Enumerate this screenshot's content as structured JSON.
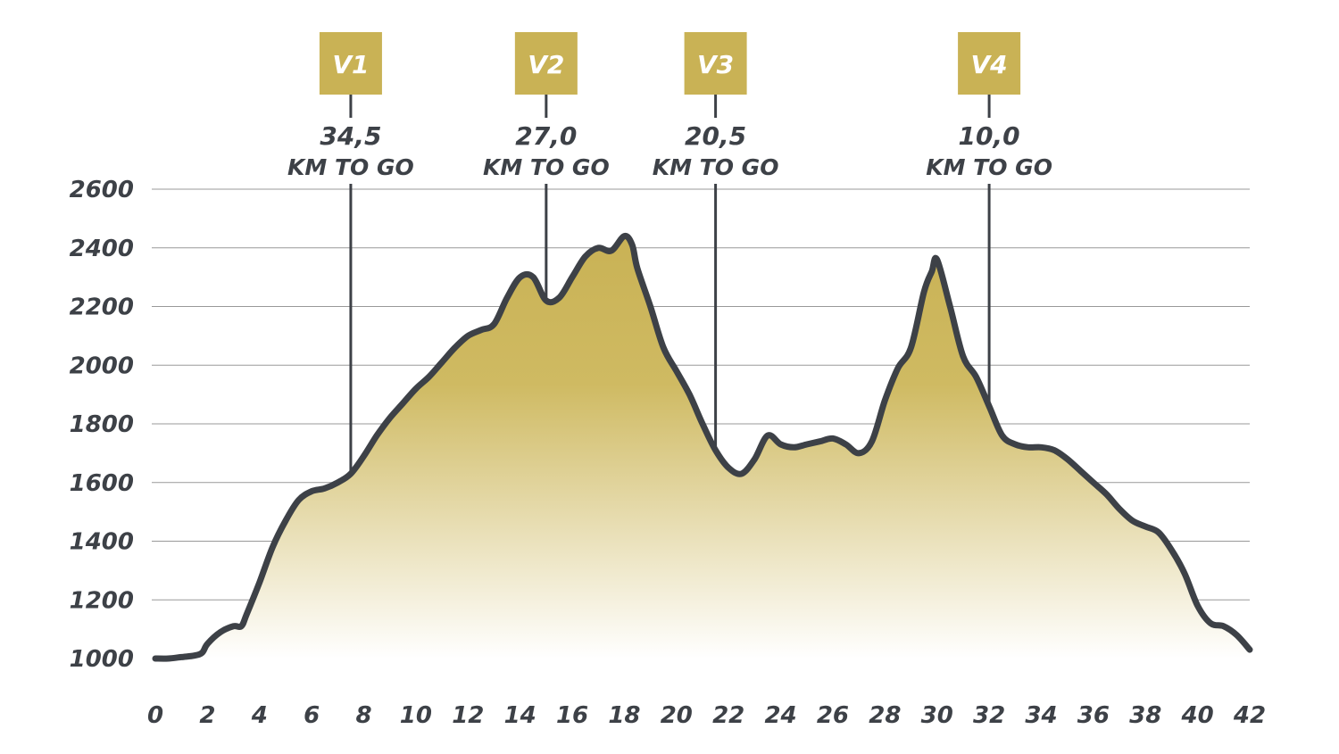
{
  "colors": {
    "line": "#3d4147",
    "fill_top": "#c9b255",
    "fill_bottom": "#ffffff",
    "badge": "#c9b255",
    "grid": "#999999"
  },
  "chart_data": {
    "type": "area",
    "title": "",
    "xlabel": "",
    "ylabel": "",
    "xlim": [
      0,
      42
    ],
    "ylim": [
      1000,
      2600
    ],
    "grid": true,
    "x_ticks": [
      0,
      2,
      4,
      6,
      8,
      10,
      12,
      14,
      16,
      18,
      20,
      22,
      24,
      26,
      28,
      30,
      32,
      34,
      36,
      38,
      40,
      42
    ],
    "y_ticks": [
      1000,
      1200,
      1400,
      1600,
      1800,
      2000,
      2200,
      2400,
      2600
    ],
    "series": [
      {
        "x": [
          0,
          0.5,
          1,
          1.5,
          1.8,
          2,
          2.5,
          3,
          3.3,
          3.5,
          4,
          4.5,
          5,
          5.5,
          6,
          6.5,
          7,
          7.5,
          8,
          8.5,
          9,
          9.5,
          10,
          10.5,
          11,
          11.5,
          12,
          12.5,
          13,
          13.5,
          14,
          14.5,
          15,
          15.5,
          16,
          16.5,
          17,
          17.5,
          18,
          18.3,
          18.5,
          19,
          19.5,
          20,
          20.5,
          21,
          21.5,
          22,
          22.5,
          23,
          23.5,
          24,
          24.5,
          25,
          25.5,
          26,
          26.5,
          27,
          27.5,
          28,
          28.5,
          29,
          29.5,
          29.8,
          30,
          30.5,
          31,
          31.5,
          32,
          32.5,
          33,
          33.5,
          34,
          34.5,
          35,
          35.5,
          36,
          36.5,
          37,
          37.5,
          38,
          38.5,
          39,
          39.5,
          40,
          40.5,
          41,
          41.5,
          42
        ],
        "values": [
          1000,
          1000,
          1005,
          1010,
          1020,
          1050,
          1090,
          1110,
          1110,
          1150,
          1260,
          1380,
          1470,
          1540,
          1570,
          1580,
          1600,
          1630,
          1690,
          1760,
          1820,
          1870,
          1920,
          1960,
          2010,
          2060,
          2100,
          2120,
          2140,
          2230,
          2300,
          2300,
          2220,
          2230,
          2300,
          2370,
          2400,
          2390,
          2440,
          2410,
          2330,
          2200,
          2060,
          1980,
          1900,
          1800,
          1710,
          1650,
          1630,
          1680,
          1760,
          1730,
          1720,
          1730,
          1740,
          1750,
          1730,
          1700,
          1740,
          1880,
          1990,
          2060,
          2250,
          2320,
          2360,
          2200,
          2030,
          1960,
          1860,
          1760,
          1730,
          1720,
          1720,
          1710,
          1680,
          1640,
          1600,
          1560,
          1510,
          1470,
          1450,
          1430,
          1370,
          1290,
          1180,
          1120,
          1110,
          1080,
          1030
        ]
      }
    ],
    "waypoints": [
      {
        "label": "V1",
        "km": 7.5,
        "distance": "34,5",
        "unit": "KM TO GO"
      },
      {
        "label": "V2",
        "km": 15.0,
        "distance": "27,0",
        "unit": "KM TO GO"
      },
      {
        "label": "V3",
        "km": 21.5,
        "distance": "20,5",
        "unit": "KM TO GO"
      },
      {
        "label": "V4",
        "km": 32.0,
        "distance": "10,0",
        "unit": "KM TO GO"
      }
    ]
  }
}
